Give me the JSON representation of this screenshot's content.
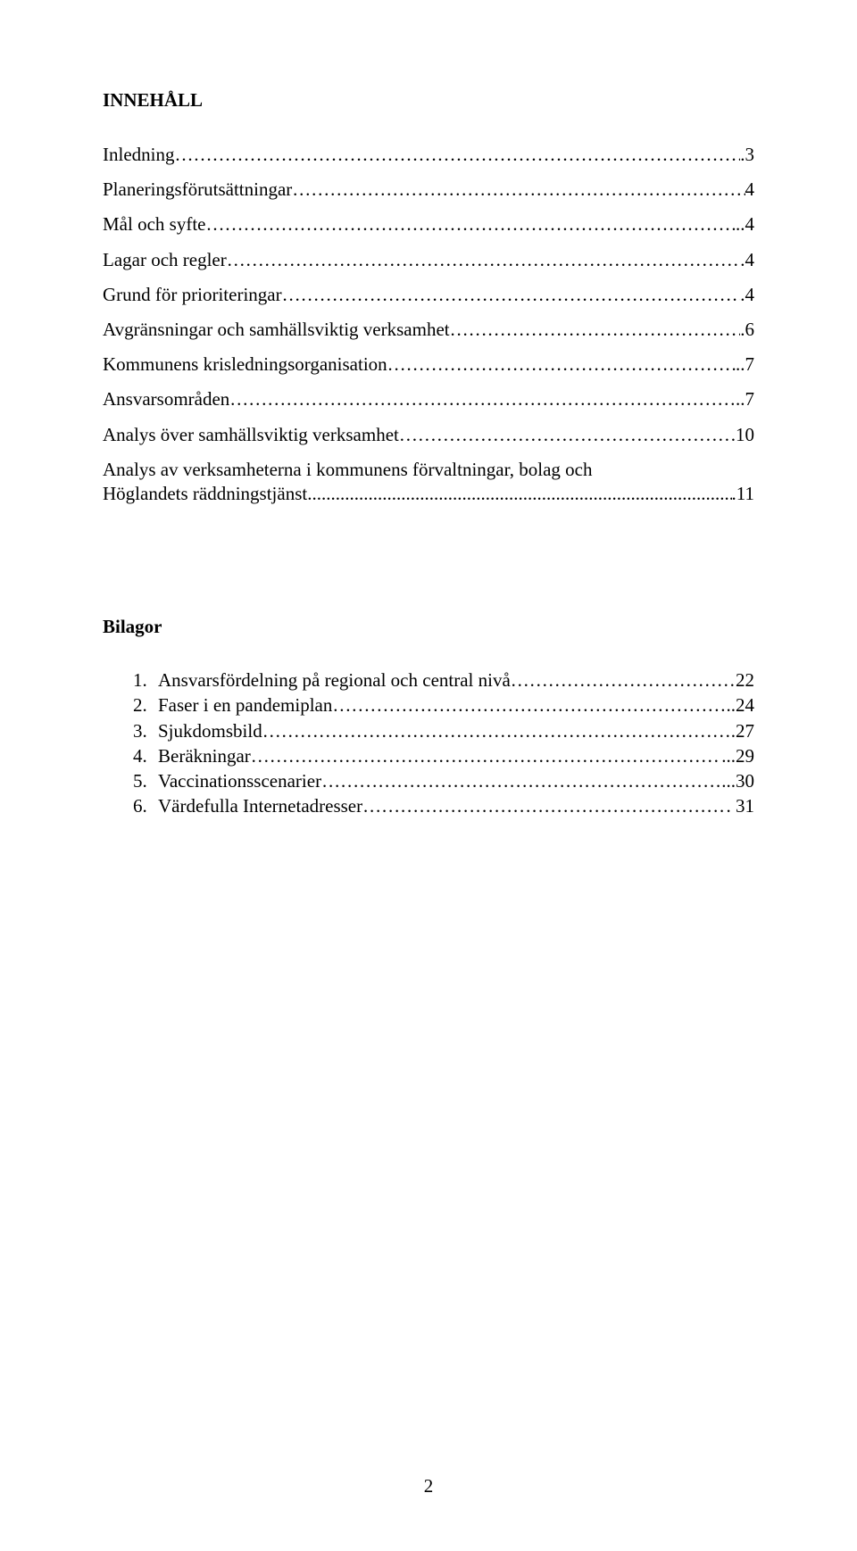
{
  "heading": "INNEHÅLL",
  "toc": [
    {
      "label": "Inledning",
      "page": ".3"
    },
    {
      "label": "Planeringsförutsättningar",
      "page": "4"
    },
    {
      "label": "Mål och syfte",
      "page": "..4"
    },
    {
      "label": "Lagar och regler",
      "page": ".4"
    },
    {
      "label": "Grund för prioriteringar",
      "page": ".4"
    },
    {
      "label": "Avgränsningar och samhällsviktig verksamhet",
      "page": ".6"
    },
    {
      "label": "Kommunens krisledningsorganisation",
      "page": "..7"
    },
    {
      "label": "Ansvarsområden ",
      "page": "..7"
    },
    {
      "label": "Analys över samhällsviktig verksamhet",
      "page": ".10"
    }
  ],
  "multi": {
    "line1": "Analys av verksamheterna i kommunens förvaltningar, bolag och",
    "line2label": "Höglandets räddningstjänst",
    "line2page": ".11"
  },
  "bilagor_heading": "Bilagor",
  "bilagor": [
    {
      "num": "1.",
      "label": "Ansvarsfördelning på regional och central nivå",
      "page": "22"
    },
    {
      "num": "2.",
      "label": "Faser i en pandemiplan",
      "page": "..24"
    },
    {
      "num": "3.",
      "label": "Sjukdomsbild",
      "page": ".27"
    },
    {
      "num": "4.",
      "label": "Beräkningar",
      "page": "...29"
    },
    {
      "num": "5.",
      "label": "Vaccinationsscenarier",
      "page": "...30"
    },
    {
      "num": "6.",
      "label": "Värdefulla Internetadresser",
      "page": ". 31"
    }
  ],
  "page_number": "2",
  "colors": {
    "text": "#000000",
    "background": "#ffffff"
  },
  "typography": {
    "family": "Times New Roman",
    "body_pt": 16,
    "heading_weight": "bold"
  }
}
